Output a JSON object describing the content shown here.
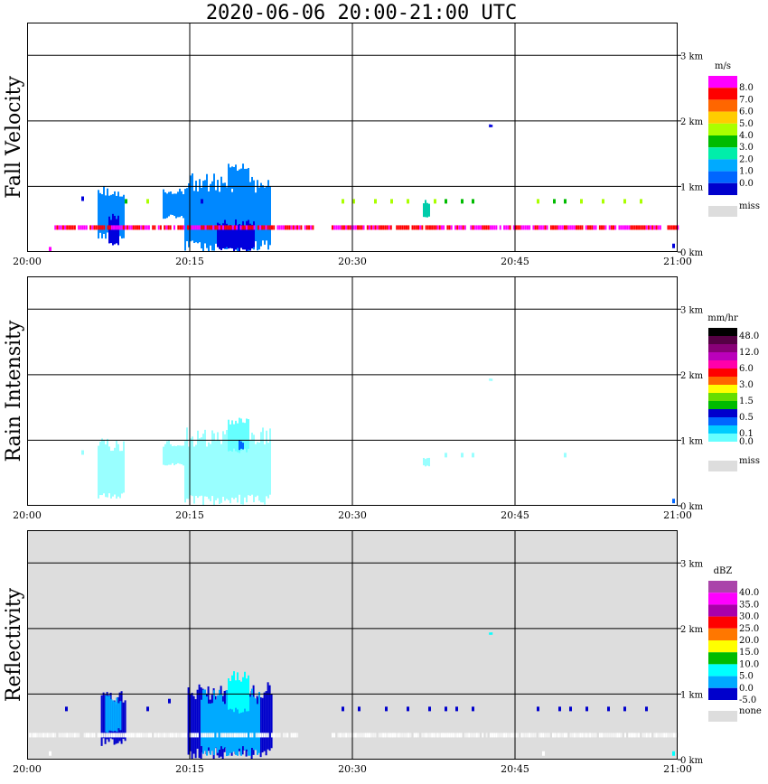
{
  "title": "2020-06-06  20:00-21:00 UTC",
  "x_ticks": [
    "20:00",
    "20:15",
    "20:30",
    "20:45",
    "21:00"
  ],
  "y_ticks": [
    "0 km",
    "1 km",
    "2 km",
    "3 km"
  ],
  "colors": {
    "empty_bg": "#ffffff",
    "missing_bg": "#dddddd",
    "grid": "#000000"
  },
  "chart_data": [
    {
      "type": "heatmap",
      "title": "Fall Velocity",
      "xlabel": "",
      "ylabel": "Fall Velocity",
      "xlim": [
        "20:00",
        "21:00"
      ],
      "ylim": [
        0,
        3.5
      ],
      "grid": true,
      "background": "#ffffff",
      "colorbar": {
        "unit": "m/s",
        "labels": [
          "8.0",
          "7.0",
          "6.0",
          "5.0",
          "4.0",
          "3.0",
          "2.0",
          "1.0",
          "0.0"
        ],
        "colors": [
          "#ff00ff",
          "#ff0000",
          "#ff6600",
          "#ffcc00",
          "#aaff00",
          "#00bb00",
          "#00eeaa",
          "#00aaff",
          "#0066ff",
          "#0000cc"
        ],
        "miss_label": "miss"
      },
      "regions": [
        {
          "t0": 6.5,
          "t1": 9.0,
          "h0": 0.2,
          "h1": 1.05,
          "color": "#0088ff"
        },
        {
          "t0": 7.5,
          "t1": 8.5,
          "h0": 0.1,
          "h1": 0.6,
          "color": "#0000dd"
        },
        {
          "t0": 12.5,
          "t1": 15.0,
          "h0": 0.5,
          "h1": 1.0,
          "color": "#0088ff"
        },
        {
          "t0": 14.5,
          "t1": 22.5,
          "h0": 0.0,
          "h1": 1.2,
          "color": "#0088ff"
        },
        {
          "t0": 17.5,
          "t1": 21.0,
          "h0": 0.0,
          "h1": 0.5,
          "color": "#0000dd"
        },
        {
          "t0": 18.5,
          "t1": 20.5,
          "h0": 0.9,
          "h1": 1.35,
          "color": "#0088ff"
        },
        {
          "t0": 36.5,
          "t1": 37.0,
          "h0": 0.5,
          "h1": 0.8,
          "color": "#00ccaa"
        },
        {
          "t0": 42.6,
          "t1": 42.9,
          "h0": 1.9,
          "h1": 1.95,
          "color": "#0000dd"
        }
      ],
      "band": {
        "h": 0.38,
        "colors": [
          "#ff00ff",
          "#ff0000"
        ],
        "gaps": [
          [
            0,
            2.5
          ],
          [
            26.5,
            28.0
          ]
        ]
      },
      "dots": [
        [
          5.0,
          0.82,
          "#0000dd"
        ],
        [
          9.0,
          0.78,
          "#00bb00"
        ],
        [
          11.0,
          0.78,
          "#aaff00"
        ],
        [
          16.0,
          0.78,
          "#0000dd"
        ],
        [
          29.0,
          0.78,
          "#aaff00"
        ],
        [
          30.0,
          0.78,
          "#aaff00"
        ],
        [
          32.0,
          0.78,
          "#aaff00"
        ],
        [
          33.5,
          0.78,
          "#aaff00"
        ],
        [
          35.0,
          0.78,
          "#aaff00"
        ],
        [
          37.5,
          0.78,
          "#aaff00"
        ],
        [
          38.5,
          0.78,
          "#00bb00"
        ],
        [
          40.0,
          0.78,
          "#00bb00"
        ],
        [
          41.0,
          0.78,
          "#00bb00"
        ],
        [
          47.0,
          0.78,
          "#aaff00"
        ],
        [
          48.5,
          0.78,
          "#00bb00"
        ],
        [
          49.5,
          0.78,
          "#00bb00"
        ],
        [
          51.0,
          0.78,
          "#aaff00"
        ],
        [
          53.0,
          0.78,
          "#aaff00"
        ],
        [
          55.0,
          0.78,
          "#aaff00"
        ],
        [
          56.5,
          0.78,
          "#aaff00"
        ],
        [
          59.5,
          0.1,
          "#0000dd"
        ],
        [
          2.0,
          0.05,
          "#ff00ff"
        ]
      ]
    },
    {
      "type": "heatmap",
      "title": "Rain Intensity",
      "xlabel": "",
      "ylabel": "Rain Intensity",
      "xlim": [
        "20:00",
        "21:00"
      ],
      "ylim": [
        0,
        3.5
      ],
      "grid": true,
      "background": "#ffffff",
      "colorbar": {
        "unit": "mm/hr",
        "labels": [
          "48.0",
          "",
          "12.0",
          "",
          "6.0",
          "",
          "3.0",
          "",
          "1.5",
          "",
          "0.5",
          "",
          "0.1",
          "0.0"
        ],
        "colors": [
          "#000000",
          "#550044",
          "#880077",
          "#bb00bb",
          "#ff00aa",
          "#ff0000",
          "#ff6600",
          "#ffff00",
          "#66dd00",
          "#00bb00",
          "#0000cc",
          "#0066ff",
          "#00ccff",
          "#66ffff",
          "#ffffff"
        ],
        "miss_label": "miss"
      },
      "regions": [
        {
          "t0": 6.5,
          "t1": 9.0,
          "h0": 0.1,
          "h1": 1.05,
          "color": "#99ffff"
        },
        {
          "t0": 12.5,
          "t1": 14.5,
          "h0": 0.6,
          "h1": 1.0,
          "color": "#99ffff"
        },
        {
          "t0": 14.5,
          "t1": 22.5,
          "h0": 0.0,
          "h1": 1.2,
          "color": "#99ffff"
        },
        {
          "t0": 18.5,
          "t1": 20.5,
          "h0": 0.8,
          "h1": 1.35,
          "color": "#66ffff"
        },
        {
          "t0": 19.5,
          "t1": 20.0,
          "h0": 0.85,
          "h1": 1.0,
          "color": "#0066ff"
        },
        {
          "t0": 36.5,
          "t1": 37.0,
          "h0": 0.6,
          "h1": 0.75,
          "color": "#99ffff"
        },
        {
          "t0": 42.6,
          "t1": 42.9,
          "h0": 1.9,
          "h1": 1.95,
          "color": "#99ffff"
        }
      ],
      "dots": [
        [
          5.0,
          0.82,
          "#99ffff"
        ],
        [
          38.5,
          0.78,
          "#99ffff"
        ],
        [
          40.0,
          0.78,
          "#99ffff"
        ],
        [
          41.0,
          0.78,
          "#99ffff"
        ],
        [
          49.5,
          0.78,
          "#99ffff"
        ],
        [
          59.5,
          0.08,
          "#0066ff"
        ]
      ]
    },
    {
      "type": "heatmap",
      "title": "Reflectivity",
      "xlabel": "",
      "ylabel": "Reflectivity",
      "xlim": [
        "20:00",
        "21:00"
      ],
      "ylim": [
        0,
        3.5
      ],
      "grid": true,
      "background": "#dddddd",
      "colorbar": {
        "unit": "dBZ",
        "labels": [
          "40.0",
          "35.0",
          "30.0",
          "25.0",
          "20.0",
          "15.0",
          "10.0",
          "5.0",
          "0.0",
          "-5.0"
        ],
        "colors": [
          "#aa44aa",
          "#ff00ff",
          "#aa00aa",
          "#ff0000",
          "#ff7700",
          "#ffff00",
          "#00bb00",
          "#00ffff",
          "#00aaff",
          "#0000cc"
        ],
        "miss_label": "none"
      },
      "regions": [
        {
          "t0": 6.8,
          "t1": 9.0,
          "h0": 0.2,
          "h1": 1.05,
          "color": "#0000cc"
        },
        {
          "t0": 7.2,
          "t1": 8.6,
          "h0": 0.4,
          "h1": 1.0,
          "color": "#00aaff"
        },
        {
          "t0": 14.8,
          "t1": 22.5,
          "h0": 0.0,
          "h1": 1.2,
          "color": "#0000cc"
        },
        {
          "t0": 16.0,
          "t1": 21.5,
          "h0": 0.05,
          "h1": 1.1,
          "color": "#00aaff"
        },
        {
          "t0": 18.5,
          "t1": 20.5,
          "h0": 0.7,
          "h1": 1.35,
          "color": "#00ffff"
        },
        {
          "t0": 42.6,
          "t1": 42.9,
          "h0": 1.9,
          "h1": 1.95,
          "color": "#00ffff"
        }
      ],
      "band": {
        "h": 0.38,
        "colors": [
          "#ffffff",
          "#f4f4f4"
        ],
        "gaps": [
          [
            25.0,
            28.0
          ]
        ]
      },
      "dots": [
        [
          3.5,
          0.78,
          "#0000cc"
        ],
        [
          11.0,
          0.78,
          "#0000cc"
        ],
        [
          13.0,
          0.9,
          "#0000cc"
        ],
        [
          29.0,
          0.78,
          "#0000cc"
        ],
        [
          30.5,
          0.78,
          "#0000cc"
        ],
        [
          33.0,
          0.78,
          "#0000cc"
        ],
        [
          35.0,
          0.78,
          "#0000cc"
        ],
        [
          37.0,
          0.78,
          "#0000cc"
        ],
        [
          38.5,
          0.78,
          "#0000cc"
        ],
        [
          39.5,
          0.78,
          "#0000cc"
        ],
        [
          41.0,
          0.78,
          "#0000cc"
        ],
        [
          47.0,
          0.78,
          "#0000cc"
        ],
        [
          49.0,
          0.78,
          "#0000cc"
        ],
        [
          50.0,
          0.78,
          "#0000cc"
        ],
        [
          51.5,
          0.78,
          "#0000cc"
        ],
        [
          53.5,
          0.78,
          "#0000cc"
        ],
        [
          55.0,
          0.78,
          "#0000cc"
        ],
        [
          57.0,
          0.78,
          "#0000cc"
        ],
        [
          59.5,
          0.1,
          "#00ffff"
        ],
        [
          2.0,
          0.1,
          "#ffffff"
        ],
        [
          47.5,
          0.1,
          "#ffffff"
        ]
      ]
    }
  ]
}
